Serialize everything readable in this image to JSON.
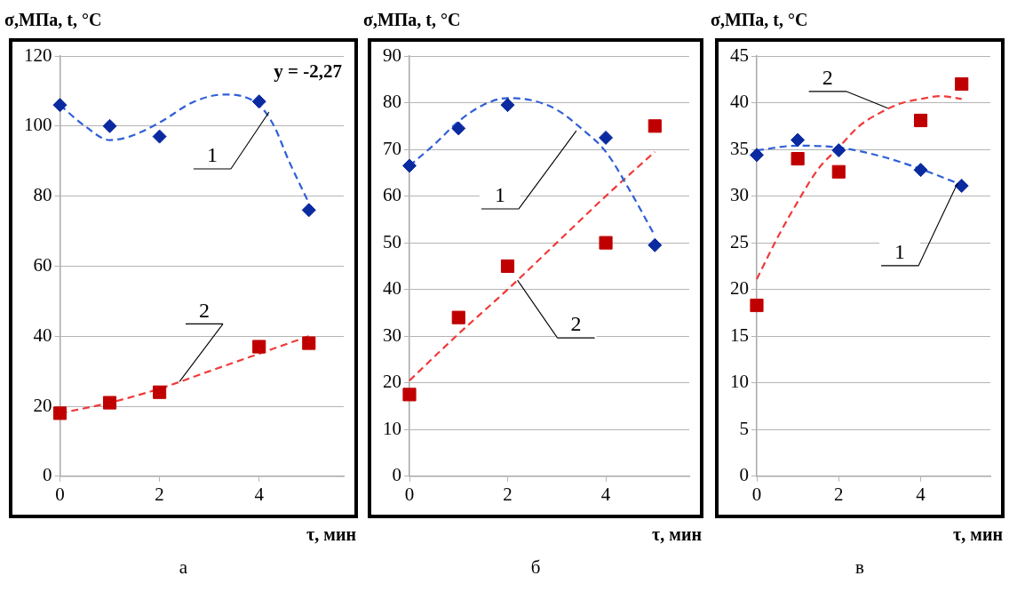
{
  "chart_data": [
    {
      "type": "scatter",
      "title": "а",
      "xlabel": "τ, мин",
      "ylabel": "σ,МПа, t, °C",
      "xlim": [
        0,
        5.7
      ],
      "xticks": [
        0,
        2,
        4
      ],
      "ylim": [
        0,
        120
      ],
      "yticks": [
        0,
        20,
        40,
        60,
        80,
        100,
        120
      ],
      "grid": "y",
      "series": [
        {
          "type": "scatter",
          "marker": "diamond",
          "color": "#0a2aa0",
          "x": [
            0,
            1,
            2,
            4,
            5
          ],
          "values": [
            106,
            100,
            97,
            107,
            76
          ]
        },
        {
          "type": "scatter",
          "marker": "square",
          "color": "#c00000",
          "x": [
            0,
            1,
            2,
            4,
            5
          ],
          "values": [
            18,
            21,
            24,
            37,
            38
          ]
        },
        {
          "type": "line",
          "marker": "none",
          "line_style": "dashed",
          "color": "#2f5fd6",
          "x": [
            0,
            0.5,
            1,
            1.4,
            2,
            2.7,
            3.3,
            4,
            4.3,
            4.6,
            5
          ],
          "values": [
            106,
            100,
            96,
            97,
            101,
            107,
            109,
            106,
            100,
            90,
            78
          ]
        },
        {
          "type": "line",
          "marker": "none",
          "line_style": "dashed",
          "color": "#f03a3a",
          "x": [
            0,
            1,
            2,
            3,
            4,
            5
          ],
          "values": [
            18,
            21,
            25,
            30,
            35,
            40
          ]
        }
      ],
      "annotations": [
        "y = -2,27",
        {
          "text": "1",
          "x": 4.2,
          "y": 104
        },
        {
          "text": "2",
          "x": 2.4,
          "y": 27
        }
      ]
    },
    {
      "type": "scatter",
      "title": "б",
      "xlabel": "τ, мин",
      "ylabel": "σ,МПа, t, °C",
      "xlim": [
        0,
        5.7
      ],
      "xticks": [
        0,
        2,
        4
      ],
      "ylim": [
        0,
        90
      ],
      "yticks": [
        0,
        10,
        20,
        30,
        40,
        50,
        60,
        70,
        80,
        90
      ],
      "grid": "y",
      "series": [
        {
          "type": "scatter",
          "marker": "diamond",
          "color": "#0a2aa0",
          "x": [
            0,
            1,
            2,
            4,
            5
          ],
          "values": [
            66.5,
            74.5,
            79.5,
            72.5,
            49.5
          ]
        },
        {
          "type": "scatter",
          "marker": "square",
          "color": "#c00000",
          "x": [
            0,
            1,
            2,
            4,
            5
          ],
          "values": [
            17.5,
            34,
            45,
            50,
            75
          ]
        },
        {
          "type": "line",
          "marker": "none",
          "line_style": "dashed",
          "color": "#2f5fd6",
          "x": [
            0,
            0.5,
            1,
            1.5,
            2,
            2.5,
            3,
            3.5,
            4,
            4.5,
            5
          ],
          "values": [
            66.5,
            71,
            76,
            79.5,
            81,
            80.5,
            78.5,
            74.5,
            69.5,
            61,
            51.5
          ]
        },
        {
          "type": "line",
          "marker": "none",
          "line_style": "dashed",
          "color": "#f03a3a",
          "x": [
            0,
            1,
            2,
            3,
            4,
            5
          ],
          "values": [
            20.5,
            30.5,
            40,
            50,
            60,
            69.5
          ]
        }
      ],
      "annotations": [
        {
          "text": "1",
          "x": 3.4,
          "y": 74
        },
        {
          "text": "2",
          "x": 2.2,
          "y": 42
        }
      ]
    },
    {
      "type": "scatter",
      "title": "в",
      "xlabel": "τ, мин",
      "ylabel": "σ,МПа, t, °C",
      "xlim": [
        0,
        5.7
      ],
      "xticks": [
        0,
        2,
        4
      ],
      "ylim": [
        0,
        45
      ],
      "yticks": [
        0,
        5,
        10,
        15,
        20,
        25,
        30,
        35,
        40,
        45
      ],
      "grid": "y",
      "series": [
        {
          "type": "scatter",
          "marker": "diamond",
          "color": "#0a2aa0",
          "x": [
            0,
            1,
            2,
            4,
            5
          ],
          "values": [
            34.4,
            36,
            34.9,
            32.8,
            31.1
          ]
        },
        {
          "type": "scatter",
          "marker": "square",
          "color": "#c00000",
          "x": [
            0,
            1,
            2,
            4,
            5
          ],
          "values": [
            18.3,
            34,
            32.6,
            38.1,
            42
          ]
        },
        {
          "type": "line",
          "marker": "none",
          "line_style": "dashed",
          "color": "#2f5fd6",
          "x": [
            0,
            1,
            2,
            3,
            4,
            5
          ],
          "values": [
            34.9,
            35.4,
            35.2,
            34.3,
            32.9,
            31.2
          ]
        },
        {
          "type": "line",
          "marker": "none",
          "line_style": "dashed",
          "color": "#f03a3a",
          "x": [
            0,
            0.5,
            1,
            1.5,
            2,
            2.5,
            3,
            3.5,
            4,
            4.5,
            5
          ],
          "values": [
            21.1,
            25.5,
            29.4,
            32.9,
            35.2,
            37.5,
            38.9,
            39.9,
            40.4,
            40.7,
            40.4
          ]
        }
      ],
      "annotations": [
        {
          "text": "1",
          "x": 4.9,
          "y": 31.4
        },
        {
          "text": "2",
          "x": 3.2,
          "y": 39.4
        }
      ]
    }
  ]
}
